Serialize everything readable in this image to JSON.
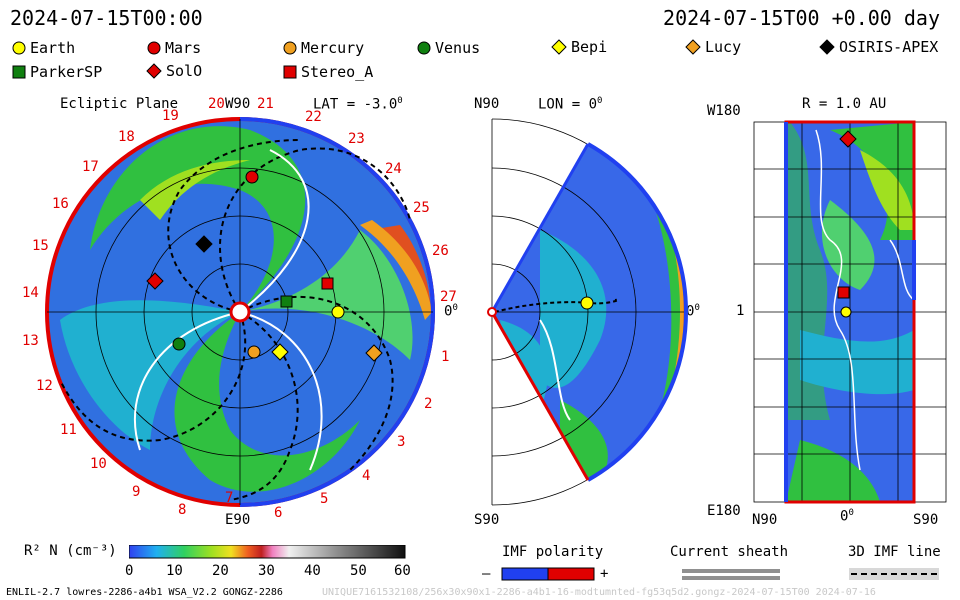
{
  "header": {
    "left_time": "2024-07-15T00:00",
    "right_time": "2024-07-15T00 +0.00 day"
  },
  "legend": [
    {
      "label": "Earth",
      "shape": "circle",
      "color": "#ffff00"
    },
    {
      "label": "Mars",
      "shape": "circle",
      "color": "#e00000"
    },
    {
      "label": "Mercury",
      "shape": "circle",
      "color": "#f0a020"
    },
    {
      "label": "Venus",
      "shape": "circle",
      "color": "#108010"
    },
    {
      "label": "Bepi",
      "shape": "diamond",
      "color": "#ffff00"
    },
    {
      "label": "Lucy",
      "shape": "diamond",
      "color": "#f0a020"
    },
    {
      "label": "OSIRIS-APEX",
      "shape": "diamond",
      "color": "#000000"
    },
    {
      "label": "ParkerSP",
      "shape": "square",
      "color": "#108010"
    },
    {
      "label": "SolO",
      "shape": "diamond",
      "color": "#e00000"
    },
    {
      "label": "Stereo_A",
      "shape": "square",
      "color": "#e00000"
    }
  ],
  "ecliptic": {
    "title": "Ecliptic Plane",
    "top_label": "W90",
    "lat_label": "LAT = -3.0",
    "right_label": "0",
    "bottom_label": "E90",
    "numbers": [
      "1",
      "2",
      "3",
      "4",
      "5",
      "6",
      "7",
      "8",
      "9",
      "10",
      "11",
      "12",
      "13",
      "14",
      "15",
      "16",
      "17",
      "18",
      "19",
      "20",
      "21",
      "22",
      "23",
      "24",
      "25",
      "26",
      "27"
    ]
  },
  "meridional": {
    "top_left": "N90",
    "lon_label": "LON = 0",
    "bottom_left": "S90",
    "right_label": "0"
  },
  "radial": {
    "top_left": "W180",
    "r_label": "R = 1.0 AU",
    "mid_left": "1",
    "bottom_left": "E180",
    "x_labels": [
      "N90",
      "0",
      "S90"
    ]
  },
  "colorbar": {
    "label": "R² N (cm⁻³)",
    "ticks": [
      "0",
      "10",
      "20",
      "30",
      "40",
      "50",
      "60"
    ]
  },
  "imf": {
    "title": "IMF polarity",
    "minus": "–",
    "plus": "+"
  },
  "sheath": {
    "title": "Current sheath"
  },
  "imfline": {
    "title": "3D IMF line"
  },
  "footer": {
    "model": "ENLIL-2.7 lowres-2286-a4b1 WSA_V2.2 GONGZ-2286",
    "watermark": "UNIQUE7161532108/256x30x90x1-2286-a4b1-16-modtumnted-fg53q5d2.gongz-2024-07-15T00 2024-07-16"
  }
}
